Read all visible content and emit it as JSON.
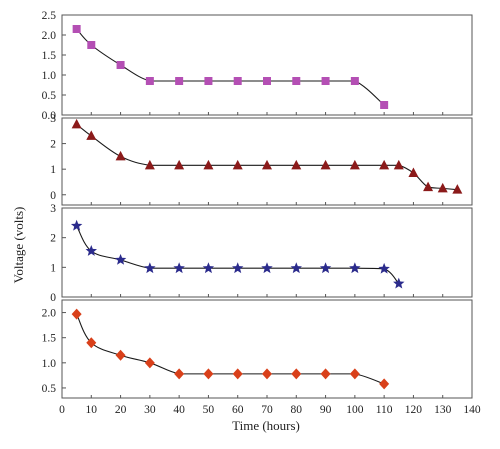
{
  "chart_data": {
    "type": "line",
    "xlabel": "Time (hours)",
    "ylabel": "Voltage (volts)",
    "xlim": [
      0,
      140
    ],
    "xticks": [
      0,
      10,
      20,
      30,
      40,
      50,
      60,
      70,
      80,
      90,
      100,
      110,
      120,
      130,
      140
    ],
    "grid": false,
    "line_color": "#1a1a1a",
    "panels": [
      {
        "ylim": [
          0,
          2.5
        ],
        "yticks": [
          "0.0",
          "0.5",
          "1.0",
          "1.5",
          "2.0",
          "2.5"
        ],
        "marker": "square",
        "color": "#b44fb4",
        "x": [
          5,
          10,
          20,
          30,
          40,
          50,
          60,
          70,
          80,
          90,
          100,
          110
        ],
        "values": [
          2.15,
          1.75,
          1.25,
          0.85,
          0.85,
          0.85,
          0.85,
          0.85,
          0.85,
          0.85,
          0.85,
          0.25
        ]
      },
      {
        "ylim": [
          -0.4,
          3
        ],
        "yticks": [
          "0",
          "1",
          "2",
          "3"
        ],
        "marker": "triangle",
        "color": "#8b1a1a",
        "x": [
          5,
          10,
          20,
          30,
          40,
          50,
          60,
          70,
          80,
          90,
          100,
          110,
          115,
          120,
          125,
          130,
          135
        ],
        "values": [
          2.75,
          2.3,
          1.5,
          1.15,
          1.15,
          1.15,
          1.15,
          1.15,
          1.15,
          1.15,
          1.15,
          1.15,
          1.15,
          0.85,
          0.3,
          0.25,
          0.2
        ]
      },
      {
        "ylim": [
          0,
          3
        ],
        "yticks": [
          "0",
          "1",
          "2",
          "3"
        ],
        "marker": "star",
        "color": "#2b2b8c",
        "x": [
          5,
          10,
          20,
          30,
          40,
          50,
          60,
          70,
          80,
          90,
          100,
          110,
          115
        ],
        "values": [
          2.4,
          1.55,
          1.25,
          0.97,
          0.97,
          0.97,
          0.97,
          0.97,
          0.97,
          0.97,
          0.97,
          0.95,
          0.45
        ]
      },
      {
        "ylim": [
          0.3,
          2.25
        ],
        "yticks": [
          "0.5",
          "1.0",
          "1.5",
          "2.0"
        ],
        "marker": "diamond",
        "color": "#d9401a",
        "x": [
          5,
          10,
          20,
          30,
          40,
          50,
          60,
          70,
          80,
          90,
          100,
          110
        ],
        "values": [
          1.97,
          1.4,
          1.15,
          1.0,
          0.78,
          0.78,
          0.78,
          0.78,
          0.78,
          0.78,
          0.78,
          0.58
        ]
      }
    ]
  }
}
